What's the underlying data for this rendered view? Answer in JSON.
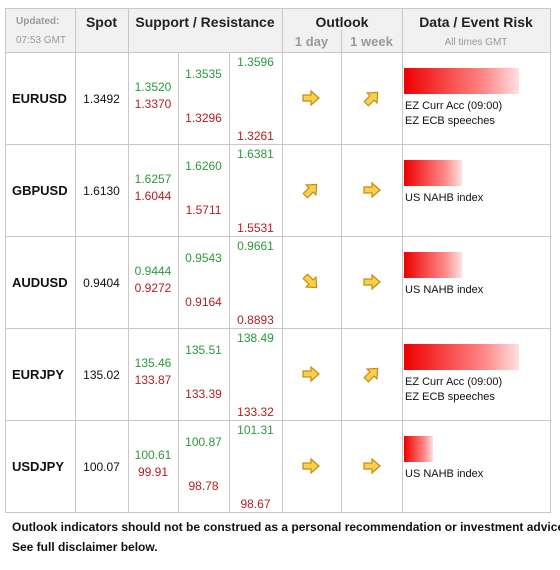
{
  "header": {
    "updated_label": "Updated:",
    "updated_time": "07:53 GMT",
    "spot": "Spot",
    "support_resistance": "Support / Resistance",
    "outlook": "Outlook",
    "outlook_1day": "1 day",
    "outlook_1week": "1 week",
    "event_risk": "Data / Event Risk",
    "times_note": "All times GMT"
  },
  "rows": [
    {
      "pair": "EURUSD",
      "spot": "1.3492",
      "resistance": [
        "1.3520",
        "1.3535",
        "1.3596"
      ],
      "support": [
        "1.3370",
        "1.3296",
        "1.3261"
      ],
      "outlook_1day": "right",
      "outlook_1week": "up-right",
      "risk_level": 4,
      "events": [
        "EZ Curr Acc (09:00)",
        "EZ ECB speeches"
      ]
    },
    {
      "pair": "GBPUSD",
      "spot": "1.6130",
      "resistance": [
        "1.6257",
        "1.6260",
        "1.6381"
      ],
      "support": [
        "1.6044",
        "1.5711",
        "1.5531"
      ],
      "outlook_1day": "up-right",
      "outlook_1week": "right",
      "risk_level": 2,
      "events": [
        "US NAHB index"
      ]
    },
    {
      "pair": "AUDUSD",
      "spot": "0.9404",
      "resistance": [
        "0.9444",
        "0.9543",
        "0.9661"
      ],
      "support": [
        "0.9272",
        "0.9164",
        "0.8893"
      ],
      "outlook_1day": "down-right",
      "outlook_1week": "right",
      "risk_level": 2,
      "events": [
        "US NAHB index"
      ]
    },
    {
      "pair": "EURJPY",
      "spot": "135.02",
      "resistance": [
        "135.46",
        "135.51",
        "138.49"
      ],
      "support": [
        "133.87",
        "133.39",
        "133.32"
      ],
      "outlook_1day": "right",
      "outlook_1week": "up-right",
      "risk_level": 4,
      "events": [
        "EZ Curr Acc (09:00)",
        "EZ ECB speeches"
      ]
    },
    {
      "pair": "USDJPY",
      "spot": "100.07",
      "resistance": [
        "100.61",
        "100.87",
        "101.31"
      ],
      "support": [
        "99.91",
        "98.78",
        "98.67"
      ],
      "outlook_1day": "right",
      "outlook_1week": "right",
      "risk_level": 1,
      "events": [
        "US NAHB index"
      ]
    }
  ],
  "footer": [
    "Outlook indicators should not be construed as a personal recommendation or investment advice.",
    "See full disclaimer below."
  ]
}
